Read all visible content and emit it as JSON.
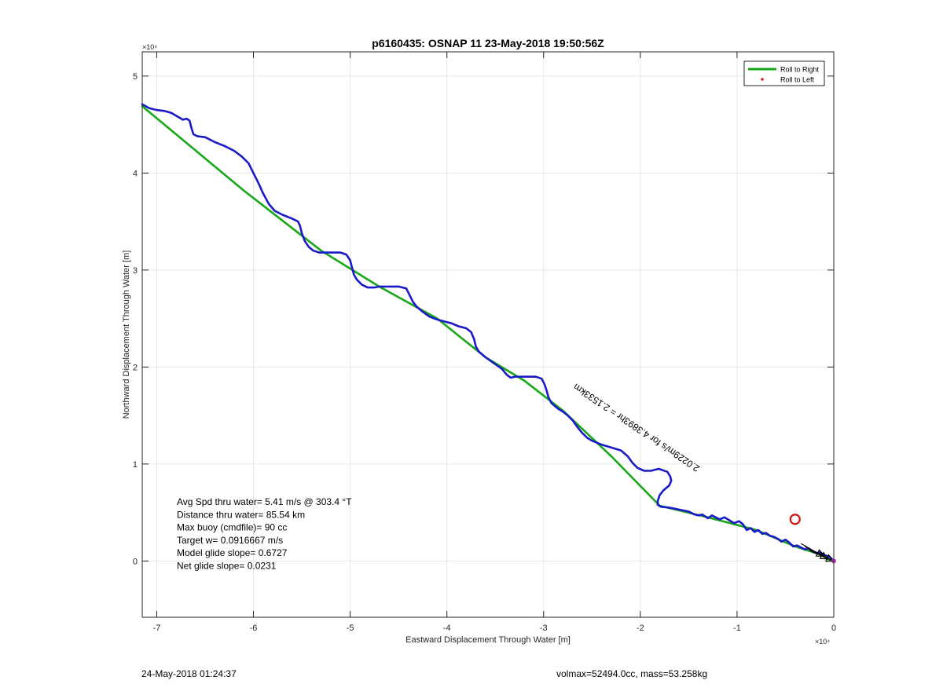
{
  "chart_data": {
    "type": "line",
    "title": "p6160435: OSNAP 11 23-May-2018 19:50:56Z",
    "xlabel": "Eastward Displacement Through Water [m]",
    "ylabel": "Northward Displacement Through Water [m]",
    "x_exponent": "×10⁴",
    "y_exponent": "×10⁴",
    "xlim": [
      -71500,
      0
    ],
    "ylim": [
      -5800,
      52500
    ],
    "xticks": [
      -70000,
      -60000,
      -50000,
      -40000,
      -30000,
      -20000,
      -10000,
      0
    ],
    "xtick_labels": [
      "-7",
      "-6",
      "-5",
      "-4",
      "-3",
      "-2",
      "-1",
      "0"
    ],
    "yticks": [
      0,
      10000,
      20000,
      30000,
      40000,
      50000
    ],
    "ytick_labels": [
      "0",
      "1",
      "2",
      "3",
      "4",
      "5"
    ],
    "grid": true,
    "legend": {
      "position": "top-right",
      "entries": [
        {
          "label": "Roll to Right",
          "color": "#17a717",
          "marker": "line"
        },
        {
          "label": "Roll to Left",
          "color": "#e02020",
          "marker": "dot"
        }
      ]
    },
    "series": [
      {
        "name": "Roll to Right",
        "color": "#17a717",
        "x": [
          -71500,
          -61000,
          -53000,
          -47000,
          -41000,
          -36000,
          -32000,
          -28000,
          -23000,
          -18000,
          -13000,
          -8000,
          -4000,
          -1500,
          -200
        ],
        "y": [
          46900,
          38200,
          32000,
          28300,
          25000,
          21000,
          18600,
          15500,
          10800,
          5700,
          4500,
          3200,
          1500,
          700,
          0
        ]
      },
      {
        "color": "#1a1ac8",
        "x": [
          -71500,
          -70800,
          -70000,
          -69200,
          -68500,
          -67800,
          -67300,
          -66900,
          -66600,
          -66400,
          -66200,
          -65800,
          -65000,
          -64000,
          -63000,
          -62000,
          -61200,
          -60500,
          -60000,
          -59500,
          -59000,
          -58400,
          -57800,
          -57000,
          -56000,
          -55400,
          -55200,
          -55000,
          -54700,
          -54300,
          -53800,
          -53200,
          -52500,
          -51800,
          -51000,
          -50400,
          -50000,
          -49800,
          -49600,
          -49300,
          -48800,
          -48200,
          -47500,
          -47000,
          -46700,
          -46000,
          -45000,
          -44200,
          -43800,
          -43500,
          -43100,
          -42500,
          -41800,
          -41000,
          -40300,
          -39500,
          -38800,
          -38000,
          -37500,
          -37200,
          -37000,
          -36700,
          -36000,
          -35000,
          -34300,
          -33800,
          -33400,
          -33000,
          -32300,
          -31500,
          -30800,
          -30200,
          -29900,
          -29700,
          -29500,
          -29200,
          -28500,
          -28000,
          -27500,
          -27000,
          -26500,
          -26000,
          -25500,
          -25000,
          -24000,
          -23000,
          -22000,
          -21300,
          -20800,
          -20300,
          -19600,
          -18900,
          -18100,
          -17200,
          -16900,
          -16800,
          -17000,
          -17600,
          -18000,
          -18200,
          -18200,
          -17900,
          -17000,
          -16000,
          -15000,
          -14400,
          -14000,
          -13600,
          -13300,
          -13000,
          -12600,
          -12200,
          -11800,
          -11300,
          -10800,
          -10300,
          -9800,
          -9400,
          -9000,
          -8600,
          -8200,
          -7800,
          -7400,
          -7000,
          -6600,
          -6200,
          -5800,
          -5400,
          -5000,
          -4600,
          -4200,
          -3800,
          -3400,
          -3000,
          -2600,
          -2200,
          -1800,
          -1400,
          -1000,
          -600,
          -300,
          0
        ],
        "y": [
          47100,
          46700,
          46500,
          46400,
          46200,
          45800,
          45500,
          45600,
          45400,
          44600,
          44000,
          43800,
          43700,
          43200,
          42800,
          42300,
          41700,
          41000,
          40000,
          39000,
          37900,
          36800,
          36100,
          35700,
          35300,
          35000,
          34600,
          33800,
          33000,
          32400,
          32000,
          31800,
          31800,
          31800,
          31800,
          31600,
          31000,
          30200,
          29500,
          29000,
          28500,
          28200,
          28200,
          28300,
          28300,
          28300,
          28300,
          28100,
          27300,
          26700,
          26200,
          25700,
          25200,
          24900,
          24700,
          24500,
          24200,
          24000,
          23600,
          22900,
          22100,
          21600,
          21000,
          20300,
          19800,
          19200,
          18900,
          19000,
          19000,
          19000,
          19000,
          18800,
          18200,
          17600,
          16900,
          16300,
          15700,
          15400,
          15000,
          14500,
          13800,
          13200,
          12700,
          12400,
          12000,
          11700,
          11400,
          10800,
          10100,
          9600,
          9300,
          9300,
          9500,
          9200,
          8700,
          8300,
          7800,
          7300,
          6800,
          6200,
          5800,
          5600,
          5500,
          5300,
          5100,
          4800,
          4700,
          4800,
          4600,
          4400,
          4700,
          4500,
          4300,
          4500,
          4200,
          3900,
          4100,
          3800,
          3200,
          3400,
          3000,
          3200,
          2800,
          2900,
          2600,
          2500,
          2300,
          2000,
          2200,
          1900,
          1500,
          1600,
          1400,
          1200,
          1300,
          1000,
          800,
          900,
          600,
          500,
          300,
          0
        ]
      }
    ],
    "annotations": [
      {
        "text": "2.0229m/s for 4.3893hr = 2.1533km",
        "x": -13800,
        "y": 9700,
        "rotation": -146
      },
      {
        "text": "Avg Spd thru water=  5.41 m/s @ 303.4 °T"
      },
      {
        "text": "Distance thru water= 85.54 km"
      },
      {
        "text": "Max buoy (cmdfile)= 90 cc"
      },
      {
        "text": "Target w= 0.0916667 m/s"
      },
      {
        "text": "Model glide slope= 0.6727"
      },
      {
        "text": "Net glide slope= 0.0231"
      }
    ],
    "markers": {
      "circle": {
        "x": -4000,
        "y": 4300,
        "color": "#cc1111"
      },
      "end_point": {
        "x": 0,
        "y": 0,
        "color": "#cc33cc"
      },
      "arrows": [
        {
          "x0": -3000,
          "y0": 1500,
          "x1": -1000,
          "y1": 500
        },
        {
          "x0": -3400,
          "y0": 1800,
          "x1": -600,
          "y1": 200
        },
        {
          "x0": -2500,
          "y0": 1100,
          "x1": 0,
          "y1": 0
        }
      ]
    }
  },
  "footer": {
    "left": "24-May-2018 01:24:37",
    "right": "volmax=52494.0cc, mass=53.258kg"
  }
}
